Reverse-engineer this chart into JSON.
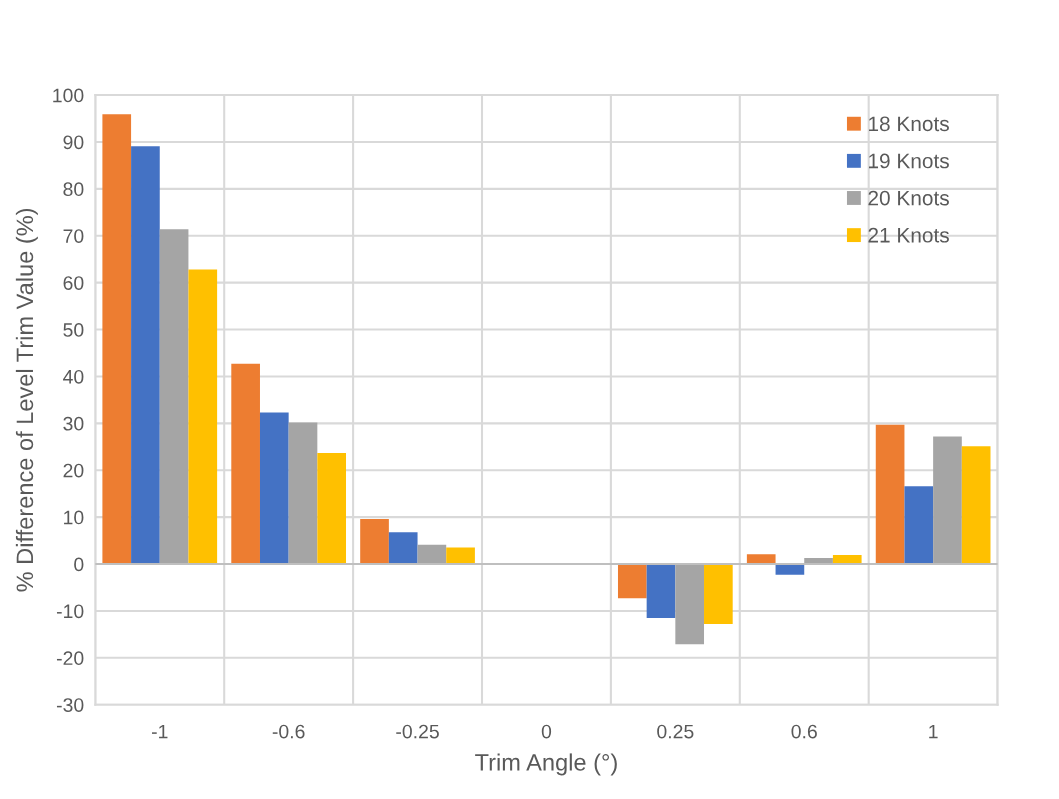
{
  "chart_data": {
    "type": "bar",
    "xlabel": "Trim Angle (°)",
    "ylabel": "% Difference of Level Trim Value (%)",
    "categories": [
      "-1",
      "-0.6",
      "-0.25",
      "0",
      "0.25",
      "0.6",
      "1"
    ],
    "series": [
      {
        "name": "18 Knots",
        "color": "#ed7d31",
        "values": [
          95.9,
          42.7,
          9.6,
          0,
          -7.3,
          2.1,
          29.7
        ]
      },
      {
        "name": "19 Knots",
        "color": "#4472c4",
        "values": [
          89.1,
          32.3,
          6.8,
          0,
          -11.5,
          -2.3,
          16.6
        ]
      },
      {
        "name": "20 Knots",
        "color": "#a5a5a5",
        "values": [
          71.4,
          30.2,
          4.1,
          0,
          -17.1,
          1.3,
          27.2
        ]
      },
      {
        "name": "21 Knots",
        "color": "#ffc000",
        "values": [
          62.8,
          23.7,
          3.5,
          0,
          -12.8,
          1.9,
          25.1
        ]
      }
    ],
    "ylim": [
      -30,
      100
    ],
    "yticks": [
      -30,
      -20,
      -10,
      0,
      10,
      20,
      30,
      40,
      50,
      60,
      70,
      80,
      90,
      100
    ],
    "grid": true,
    "legend": "top right"
  }
}
